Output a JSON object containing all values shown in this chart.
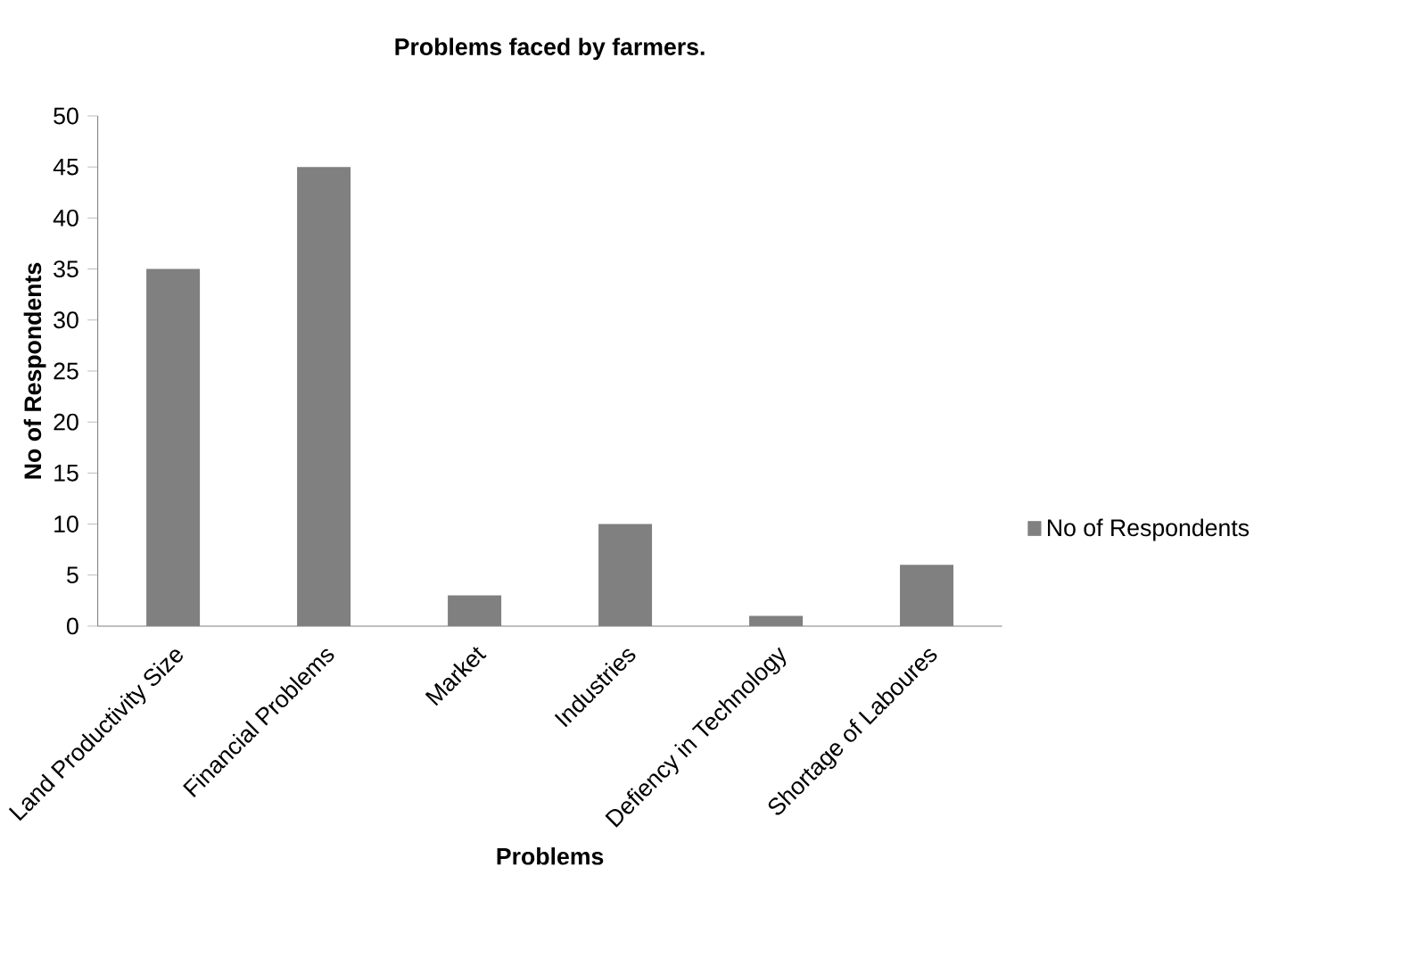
{
  "chart_data": {
    "type": "bar",
    "title": "Problems faced by farmers.",
    "xlabel": "Problems",
    "ylabel": "No of Respondents",
    "categories": [
      "Land Productivity Size",
      "Financial Problems",
      "Market",
      "Industries",
      "Defiency in Technology",
      "Shortage of Laboures"
    ],
    "series": [
      {
        "name": "No of Respondents",
        "color": "#808080",
        "values": [
          35,
          45,
          3,
          10,
          1,
          6
        ]
      }
    ],
    "ylim": [
      0,
      50
    ],
    "yticks": [
      0,
      5,
      10,
      15,
      20,
      25,
      30,
      35,
      40,
      45,
      50
    ],
    "legend": "right",
    "grid": false
  }
}
